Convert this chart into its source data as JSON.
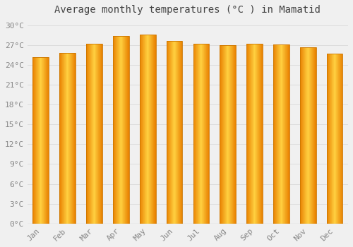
{
  "title": "Average monthly temperatures (°C ) in Mamatid",
  "months": [
    "Jan",
    "Feb",
    "Mar",
    "Apr",
    "May",
    "Jun",
    "Jul",
    "Aug",
    "Sep",
    "Oct",
    "Nov",
    "Dec"
  ],
  "temperatures": [
    25.2,
    25.8,
    27.2,
    28.4,
    28.6,
    27.6,
    27.2,
    27.0,
    27.2,
    27.1,
    26.7,
    25.7
  ],
  "ylim": [
    0,
    31
  ],
  "yticks": [
    0,
    3,
    6,
    9,
    12,
    15,
    18,
    21,
    24,
    27,
    30
  ],
  "ytick_labels": [
    "0°C",
    "3°C",
    "6°C",
    "9°C",
    "12°C",
    "15°C",
    "18°C",
    "21°C",
    "24°C",
    "27°C",
    "30°C"
  ],
  "background_color": "#F0F0F0",
  "grid_color": "#DDDDDD",
  "title_fontsize": 10,
  "tick_fontsize": 8,
  "tick_color": "#888888",
  "font_family": "monospace",
  "bar_width": 0.6,
  "bar_color_center": "#FFD040",
  "bar_color_edge": "#E88000"
}
